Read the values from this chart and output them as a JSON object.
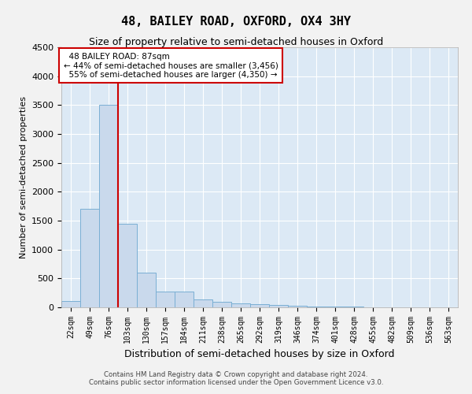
{
  "title": "48, BAILEY ROAD, OXFORD, OX4 3HY",
  "subtitle": "Size of property relative to semi-detached houses in Oxford",
  "xlabel": "Distribution of semi-detached houses by size in Oxford",
  "ylabel": "Number of semi-detached properties",
  "property_label": "48 BAILEY ROAD: 87sqm",
  "pct_smaller": 44,
  "pct_larger": 55,
  "n_smaller": 3456,
  "n_larger": 4350,
  "bin_labels": [
    "22sqm",
    "49sqm",
    "76sqm",
    "103sqm",
    "130sqm",
    "157sqm",
    "184sqm",
    "211sqm",
    "238sqm",
    "265sqm",
    "292sqm",
    "319sqm",
    "346sqm",
    "374sqm",
    "401sqm",
    "428sqm",
    "455sqm",
    "482sqm",
    "509sqm",
    "536sqm",
    "563sqm"
  ],
  "bar_values": [
    110,
    1700,
    3500,
    1450,
    600,
    270,
    270,
    140,
    90,
    75,
    55,
    40,
    25,
    15,
    10,
    8,
    5,
    3,
    3,
    2,
    2
  ],
  "bar_color": "#c9d9ec",
  "bar_edge_color": "#7aafd4",
  "vline_color": "#cc0000",
  "vline_position": 2.5,
  "ylim": [
    0,
    4500
  ],
  "yticks": [
    0,
    500,
    1000,
    1500,
    2000,
    2500,
    3000,
    3500,
    4000,
    4500
  ],
  "grid_color": "#ffffff",
  "bg_color": "#dce9f5",
  "fig_bg_color": "#f2f2f2",
  "annotation_box_color": "#cc0000",
  "footer_line1": "Contains HM Land Registry data © Crown copyright and database right 2024.",
  "footer_line2": "Contains public sector information licensed under the Open Government Licence v3.0."
}
